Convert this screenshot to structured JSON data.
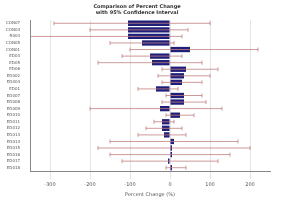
{
  "chart_data": {
    "type": "bar",
    "orientation": "horizontal",
    "title": [
      "Comparison of Percent Change",
      "with 95% Confidence Interval"
    ],
    "x_label": "Percent Change (%)",
    "categories": [
      "CON07",
      "CON04",
      "R003",
      "CON05",
      "CON01",
      "ED03",
      "ED05",
      "ED06",
      "ED002",
      "ED004",
      "ED01",
      "ED007",
      "ED008",
      "ED009",
      "ED010",
      "ED011",
      "ED012",
      "ED013",
      "ED014",
      "ED015",
      "ED016",
      "ED017",
      "ED018"
    ],
    "values": [
      -105,
      -105,
      -105,
      -70,
      50,
      -50,
      -45,
      40,
      35,
      30,
      -35,
      35,
      35,
      -25,
      25,
      -20,
      -20,
      -15,
      10,
      5,
      5,
      -5,
      5
    ],
    "error_low": [
      -290,
      -200,
      -360,
      -150,
      -100,
      -120,
      -180,
      -20,
      -30,
      -20,
      -80,
      -10,
      -20,
      -200,
      -10,
      -40,
      -60,
      -80,
      -150,
      -180,
      -150,
      -120,
      -10
    ],
    "error_high": [
      100,
      45,
      30,
      10,
      220,
      30,
      80,
      120,
      100,
      80,
      20,
      80,
      90,
      130,
      60,
      10,
      30,
      40,
      170,
      200,
      150,
      120,
      40
    ],
    "color": "#1f1f7a",
    "error_color": "#c08080",
    "xlim": [
      -350,
      250
    ],
    "xticks": [
      -300,
      -200,
      -100,
      0,
      100,
      200
    ],
    "grid": true
  }
}
